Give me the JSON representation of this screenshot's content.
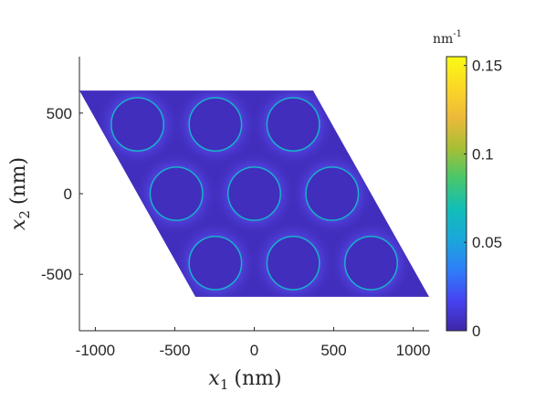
{
  "chart_data": {
    "type": "heatmap",
    "title": "",
    "xlabel": {
      "var": "x",
      "sub": "1",
      "unit": "(nm)"
    },
    "ylabel": {
      "var": "x",
      "sub": "2",
      "unit": "(nm)"
    },
    "xlim": [
      -1100,
      1100
    ],
    "ylim": [
      -850,
      850
    ],
    "xticks": [
      -1000,
      -500,
      0,
      500,
      1000
    ],
    "xtick_labels": [
      "-1000",
      "-500",
      "0",
      "500",
      "1000"
    ],
    "yticks": [
      -500,
      0,
      500
    ],
    "ytick_labels": [
      "-500",
      "0",
      "500"
    ],
    "domain": {
      "shape": "parallelogram",
      "vertices": [
        [
          -1100,
          640
        ],
        [
          370,
          640
        ],
        [
          1100,
          -640
        ],
        [
          -370,
          -640
        ]
      ]
    },
    "holes": {
      "radius": 165,
      "centers": [
        [
          -735,
          430
        ],
        [
          -245,
          430
        ],
        [
          245,
          430
        ],
        [
          -490,
          0
        ],
        [
          0,
          0
        ],
        [
          490,
          0
        ],
        [
          -245,
          -430
        ],
        [
          245,
          -430
        ],
        [
          735,
          -430
        ]
      ]
    },
    "background_value": 0.005,
    "hole_edge_value": 0.06,
    "colorbar": {
      "unit": "nm",
      "unit_exponent": "-1",
      "min": 0,
      "max": 0.155,
      "ticks": [
        0,
        0.05,
        0.1,
        0.15
      ],
      "tick_labels": [
        "0",
        "0.05",
        "0.1",
        "0.15"
      ],
      "colormap": "parula",
      "color_stops": [
        "#3e26a8",
        "#4743f1",
        "#2e7ef9",
        "#1ba7da",
        "#12bdb8",
        "#47c76c",
        "#a7bf35",
        "#edb93a",
        "#fbd826",
        "#f9fb15"
      ]
    }
  }
}
